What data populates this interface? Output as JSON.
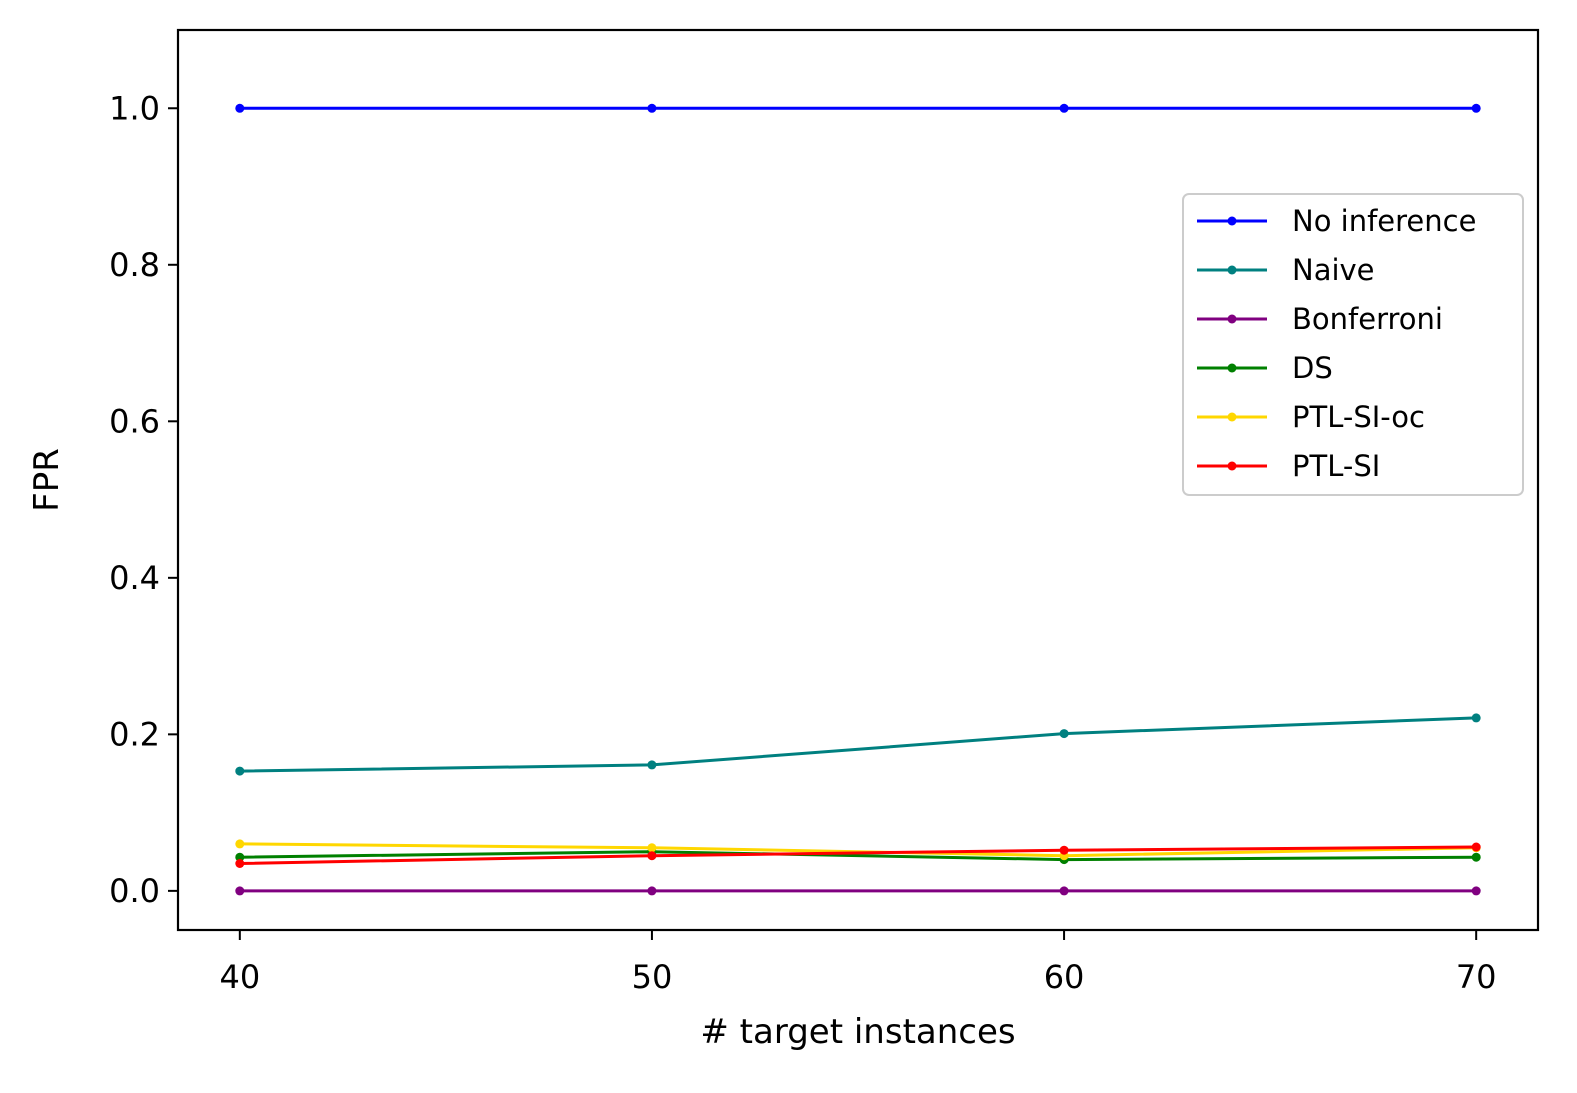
{
  "chart_data": {
    "type": "line",
    "title": "",
    "xlabel": "# target instances",
    "ylabel": "FPR",
    "x": [
      40,
      50,
      60,
      70
    ],
    "xlim": [
      38.5,
      71.5
    ],
    "ylim": [
      -0.05,
      1.1
    ],
    "xticks": [
      40,
      50,
      60,
      70
    ],
    "xtick_labels": [
      "40",
      "50",
      "60",
      "70"
    ],
    "yticks": [
      0.0,
      0.2,
      0.4,
      0.6,
      0.8,
      1.0
    ],
    "ytick_labels": [
      "0.0",
      "0.2",
      "0.4",
      "0.6",
      "0.8",
      "1.0"
    ],
    "grid": false,
    "legend_position": "center-right",
    "series": [
      {
        "name": "No inference",
        "color": "#0000ff",
        "values": [
          1.0,
          1.0,
          1.0,
          1.0
        ]
      },
      {
        "name": "Naive",
        "color": "#008080",
        "values": [
          0.153,
          0.161,
          0.201,
          0.221
        ]
      },
      {
        "name": "Bonferroni",
        "color": "#800080",
        "values": [
          0.0,
          0.0,
          0.0,
          0.0
        ]
      },
      {
        "name": "DS",
        "color": "#008000",
        "values": [
          0.043,
          0.05,
          0.04,
          0.043
        ]
      },
      {
        "name": "PTL-SI-oc",
        "color": "#ffd700",
        "values": [
          0.06,
          0.055,
          0.045,
          0.055
        ]
      },
      {
        "name": "PTL-SI",
        "color": "#ff0000",
        "values": [
          0.035,
          0.045,
          0.052,
          0.056
        ]
      }
    ]
  }
}
